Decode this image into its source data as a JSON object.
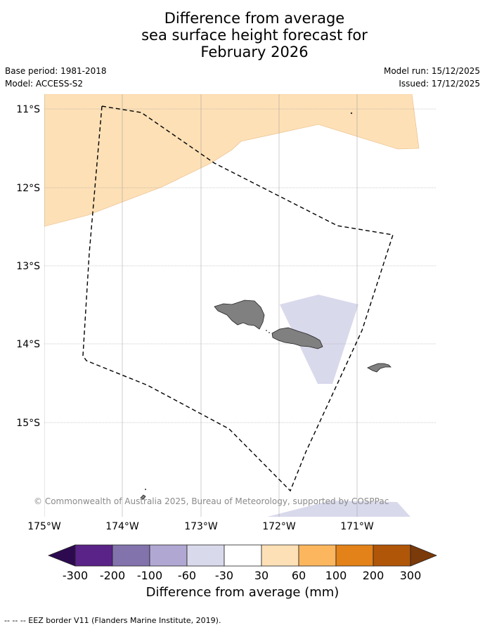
{
  "title": {
    "line1": "Difference from average",
    "line2": "sea surface height forecast for",
    "line3": "February 2026"
  },
  "meta": {
    "base_period": "Base period: 1981-2018",
    "model": "Model: ACCESS-S2",
    "model_run": "Model run: 15/12/2025",
    "issued": "Issued: 17/12/2025"
  },
  "axes": {
    "lat_labels": [
      "11°S",
      "12°S",
      "13°S",
      "14°S",
      "15°S"
    ],
    "lon_labels": [
      "175°W",
      "174°W",
      "173°W",
      "172°W",
      "171°W"
    ]
  },
  "copyright": "© Commonwealth of Australia 2025, Bureau of Meteorology, supported by COSPPac",
  "colorbar": {
    "ticks": [
      "-300",
      "-200",
      "-100",
      "-60",
      "-30",
      "30",
      "60",
      "100",
      "200",
      "300"
    ],
    "colors": [
      "#2d0a50",
      "#5a2388",
      "#8273ad",
      "#b0a8d2",
      "#d9d9ec",
      "#ffffff",
      "#fde0b6",
      "#fbb65e",
      "#e28219",
      "#b05608",
      "#7b3a09"
    ],
    "label": "Difference from average (mm)"
  },
  "footer": "--  --  -- EEZ border V11 (Flanders Marine Institute, 2019).",
  "colors": {
    "positive_30_60": "#fde0b6",
    "negative_30_60": "#d9d9ec",
    "land": "#808080"
  }
}
